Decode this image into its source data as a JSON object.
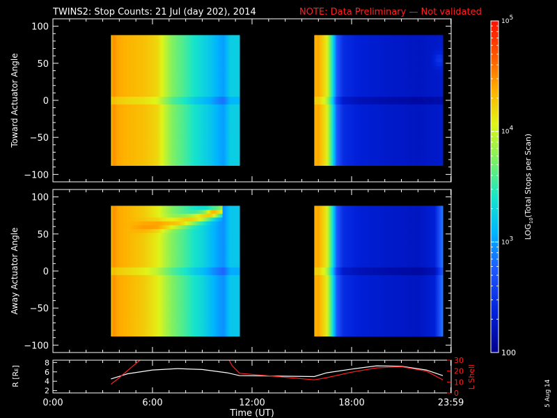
{
  "title": {
    "main": "TWINS2: Stop Counts: 21 Jul (day 202), 2014",
    "note": "NOTE: Data Preliminary — Not validated"
  },
  "colors": {
    "background": "#000000",
    "axes": "#ffffff",
    "note": "#ff2020",
    "r_line": "#ffffff",
    "l_line": "#ff2020"
  },
  "panels": [
    {
      "ylabel": "Toward Actuator Angle",
      "yticks": [
        "100",
        "50",
        "0",
        "−50",
        "−100"
      ],
      "ylim": [
        -110,
        110
      ]
    },
    {
      "ylabel": "Away Actuator Angle",
      "yticks": [
        "100",
        "50",
        "0",
        "−50",
        "−100"
      ],
      "ylim": [
        -110,
        110
      ]
    }
  ],
  "time_axis": {
    "xlabel": "Time (UT)",
    "ticks": [
      "0:00",
      "6:00",
      "12:00",
      "18:00",
      "23:59"
    ],
    "tick_hours": [
      0,
      6,
      12,
      18,
      23.98
    ],
    "xlim": [
      0,
      24
    ]
  },
  "orbit_panel": {
    "left_label": "R [R",
    "left_label_sub": "E",
    "left_label_end": "]",
    "left_ticks": [
      "8",
      "6",
      "4",
      "2"
    ],
    "left_tick_values": [
      8,
      6,
      4,
      2
    ],
    "left_lim": [
      1.5,
      8.5
    ],
    "right_label": "L Shell",
    "right_ticks": [
      "30",
      "20",
      "10",
      "0"
    ],
    "right_tick_values": [
      30,
      20,
      10,
      0
    ],
    "right_lim": [
      0,
      30
    ]
  },
  "colorbar": {
    "label_pre": "LOG",
    "label_sub": "10",
    "label_post": "(Total Stops per Scan)",
    "ticks": [
      {
        "base": "10",
        "exp": "5",
        "value": 100000
      },
      {
        "base": "10",
        "exp": "4",
        "value": 10000
      },
      {
        "base": "10",
        "exp": "3",
        "value": 1000
      },
      {
        "base": "100",
        "exp": "",
        "value": 100
      }
    ],
    "range": [
      100,
      100000
    ]
  },
  "date_stamp": "5 Aug 14",
  "chart_data": {
    "type": "heatmap",
    "x_unit": "hours UT",
    "y_unit": "degrees",
    "z_unit": "log10 total stops per scan",
    "coverage_intervals_hours": [
      [
        3.5,
        11.25
      ],
      [
        15.75,
        23.5
      ]
    ],
    "angle_range": [
      -88,
      88
    ],
    "toward": {
      "stops": [
        [
          3.5,
          4.2
        ],
        [
          3.62,
          4.5
        ],
        [
          3.9,
          4.4
        ],
        [
          4.5,
          4.35
        ],
        [
          5.5,
          4.3
        ],
        [
          6.3,
          4.2
        ],
        [
          6.8,
          3.95
        ],
        [
          7.2,
          3.75
        ],
        [
          8.0,
          3.55
        ],
        [
          8.5,
          3.4
        ],
        [
          9.0,
          3.3
        ],
        [
          9.5,
          3.2
        ],
        [
          10.0,
          3.05
        ],
        [
          10.3,
          3.0
        ],
        [
          10.7,
          3.25
        ],
        [
          11.25,
          3.25
        ],
        [
          15.75,
          4.35
        ],
        [
          16.0,
          4.4
        ],
        [
          16.5,
          4.1
        ],
        [
          16.8,
          3.5
        ],
        [
          17.1,
          2.75
        ],
        [
          17.5,
          2.45
        ],
        [
          18.5,
          2.35
        ],
        [
          20.0,
          2.3
        ],
        [
          22.0,
          2.25
        ],
        [
          23.5,
          2.3
        ]
      ],
      "features": [
        {
          "kind": "band",
          "y": 0,
          "h": 5,
          "delta": -0.15
        },
        {
          "kind": "blob",
          "x": 23.3,
          "y": 55,
          "rx": 0.35,
          "ry": 10,
          "delta": 0.2
        }
      ]
    },
    "away": {
      "stops": [
        [
          3.5,
          4.2
        ],
        [
          3.62,
          4.5
        ],
        [
          3.9,
          4.4
        ],
        [
          4.5,
          4.35
        ],
        [
          5.5,
          4.25
        ],
        [
          6.3,
          4.1
        ],
        [
          6.8,
          3.9
        ],
        [
          7.2,
          3.75
        ],
        [
          8.0,
          3.55
        ],
        [
          8.5,
          3.4
        ],
        [
          9.0,
          3.3
        ],
        [
          9.5,
          3.15
        ],
        [
          10.0,
          3.0
        ],
        [
          10.3,
          2.95
        ],
        [
          10.7,
          3.2
        ],
        [
          11.25,
          3.2
        ],
        [
          15.75,
          4.35
        ],
        [
          16.0,
          4.4
        ],
        [
          16.5,
          4.1
        ],
        [
          16.8,
          3.5
        ],
        [
          17.1,
          2.75
        ],
        [
          17.5,
          2.45
        ],
        [
          18.5,
          2.35
        ],
        [
          20.0,
          2.3
        ],
        [
          22.0,
          2.25
        ],
        [
          23.0,
          2.35
        ],
        [
          23.5,
          2.9
        ]
      ],
      "features": [
        {
          "kind": "band",
          "y": 0,
          "h": 5,
          "delta": -0.15
        },
        {
          "kind": "arc",
          "x0": 4.5,
          "x1": 10.2,
          "y0": 60,
          "y1": 82,
          "ry": 7,
          "delta": 1.15
        },
        {
          "kind": "blob",
          "x": 9.6,
          "y": 80,
          "rx": 0.3,
          "ry": 6,
          "delta": 0.3
        }
      ]
    },
    "r_earth_radii": {
      "x": [
        3.5,
        4.5,
        6.0,
        7.5,
        9.0,
        10.5,
        11.25,
        15.75,
        16.5,
        18.0,
        19.5,
        21.0,
        22.5,
        23.5
      ],
      "y": [
        4.5,
        5.6,
        6.4,
        6.7,
        6.5,
        5.8,
        5.2,
        5.0,
        5.8,
        6.6,
        7.3,
        7.2,
        6.4,
        5.2
      ]
    },
    "l_shell": {
      "segments": [
        {
          "x": [
            3.5,
            4.0,
            5.0,
            5.5
          ],
          "y": [
            8,
            14,
            27,
            33
          ]
        },
        {
          "x": [
            10.5,
            10.8,
            11.25,
            15.75,
            16.5,
            18.0,
            19.5,
            21.0,
            22.5,
            23.5
          ],
          "y": [
            33,
            25,
            18,
            12,
            14,
            19,
            23,
            24,
            20,
            12
          ]
        }
      ]
    }
  }
}
